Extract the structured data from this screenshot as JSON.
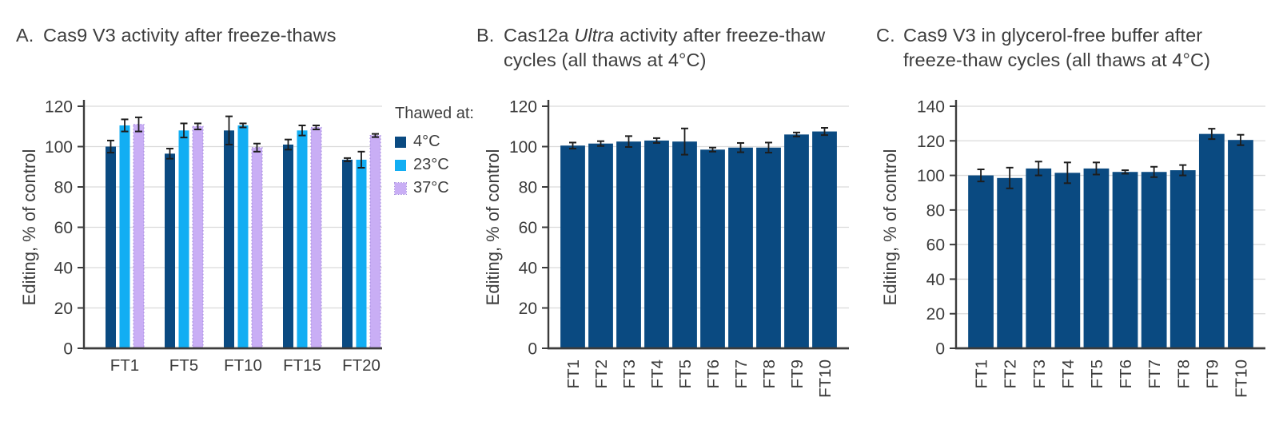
{
  "figure": {
    "background": "#ffffff"
  },
  "colors": {
    "navy": "#0a4a81",
    "cyan": "#12aef3",
    "lavender": "#c9aef5",
    "lavender_border": "#a98fe0",
    "grid": "#dadada",
    "axis": "#3c3c3c",
    "text": "#3c3c3c",
    "error_bar": "#1d1d1d",
    "title_text": "#3d3d3d"
  },
  "legend": {
    "title": "Thawed at:",
    "items": [
      {
        "label": "4°C",
        "color": "navy"
      },
      {
        "label": "23°C",
        "color": "cyan"
      },
      {
        "label": "37°C",
        "color": "lavender"
      }
    ]
  },
  "chart_data": [
    {
      "type": "bar",
      "letter": "A.",
      "title_lines": [
        [
          {
            "text": "Cas9 V3 activity after freeze-thaws",
            "italic": false
          }
        ]
      ],
      "ylabel": "Editing, % of control",
      "ylim": [
        0,
        120
      ],
      "ytick_step": 20,
      "grid": true,
      "legend_position": "right-of-plot",
      "categories": [
        "FT1",
        "FT5",
        "FT10",
        "FT15",
        "FT20"
      ],
      "x_label_rotated": false,
      "series": [
        {
          "name": "4°C",
          "color": "navy",
          "values": [
            100,
            96.5,
            108,
            101,
            93.5
          ],
          "errors": [
            3,
            2.5,
            7,
            2.5,
            0.8
          ]
        },
        {
          "name": "23°C",
          "color": "cyan",
          "values": [
            110.5,
            108,
            110.5,
            108,
            93.5
          ],
          "errors": [
            3,
            3.5,
            1,
            2.5,
            4
          ]
        },
        {
          "name": "37°C",
          "color": "lavender",
          "values": [
            111,
            110,
            99.5,
            109.5,
            105.5
          ],
          "errors": [
            3.5,
            1.5,
            2,
            1,
            0.8
          ]
        }
      ]
    },
    {
      "type": "bar",
      "letter": "B.",
      "title_lines": [
        [
          {
            "text": "Cas12a ",
            "italic": false
          },
          {
            "text": "Ultra",
            "italic": true
          },
          {
            "text": " activity after freeze-thaw",
            "italic": false
          }
        ],
        [
          {
            "text": "cycles (all thaws at 4°C)",
            "italic": false
          }
        ]
      ],
      "ylabel": "Editing, % of control",
      "ylim": [
        0,
        120
      ],
      "ytick_step": 20,
      "grid": true,
      "categories": [
        "FT1",
        "FT2",
        "FT3",
        "FT4",
        "FT5",
        "FT6",
        "FT7",
        "FT8",
        "FT9",
        "FT10"
      ],
      "x_label_rotated": true,
      "series": [
        {
          "name": "4°C",
          "color": "navy",
          "values": [
            100.5,
            101.5,
            102.5,
            103,
            102.5,
            98.5,
            99.5,
            99.5,
            106,
            107.5
          ],
          "errors": [
            1.5,
            1.2,
            2.7,
            1.2,
            6.5,
            1,
            2.3,
            2.5,
            1,
            1.8
          ]
        }
      ]
    },
    {
      "type": "bar",
      "letter": "C.",
      "title_lines": [
        [
          {
            "text": "Cas9 V3 in glycerol-free buffer after",
            "italic": false
          }
        ],
        [
          {
            "text": "freeze-thaw cycles (all thaws at 4°C)",
            "italic": false
          }
        ]
      ],
      "ylabel": "Editing, % of control",
      "ylim": [
        0,
        140
      ],
      "ytick_step": 20,
      "grid": true,
      "categories": [
        "FT1",
        "FT2",
        "FT3",
        "FT4",
        "FT5",
        "FT6",
        "FT7",
        "FT8",
        "FT9",
        "FT10"
      ],
      "x_label_rotated": true,
      "series": [
        {
          "name": "4°C",
          "color": "navy",
          "values": [
            100,
            98.5,
            104,
            101.5,
            104,
            102,
            102,
            103,
            124,
            120.5
          ],
          "errors": [
            3.5,
            6,
            4,
            6,
            3.5,
            1,
            3,
            3,
            3,
            3
          ]
        }
      ]
    }
  ]
}
